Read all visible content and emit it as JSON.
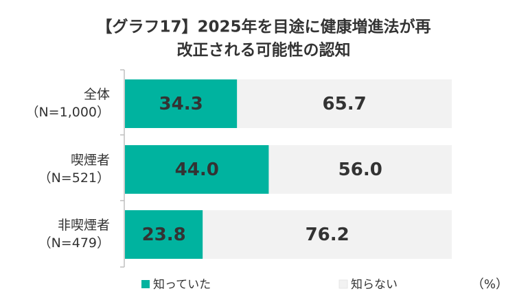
{
  "chart_data": {
    "type": "stacked-bar-horizontal",
    "title": [
      "【グラフ17】2025年を目途に健康増進法が再",
      "改正される可能性の認知"
    ],
    "categories": [
      [
        "全体",
        "（N=1,000）"
      ],
      [
        "喫煙者",
        "（N=521）"
      ],
      [
        "非喫煙者",
        "（N=479）"
      ]
    ],
    "series": [
      {
        "name": "知っていた",
        "color": "#00b39f",
        "values": [
          34.3,
          44.0,
          23.8
        ],
        "value_labels": [
          "34.3",
          "44.0",
          "23.8"
        ]
      },
      {
        "name": "知らない",
        "color": "#f2f2f2",
        "values": [
          65.7,
          56.0,
          76.2
        ],
        "value_labels": [
          "65.7",
          "56.0",
          "76.2"
        ]
      }
    ],
    "xlim": [
      0,
      100
    ],
    "unit_label": "（%）"
  }
}
